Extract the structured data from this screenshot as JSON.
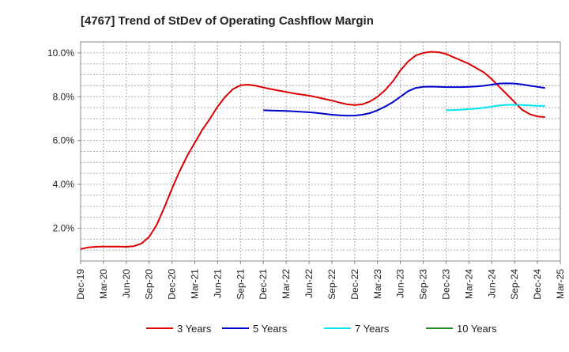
{
  "chart_data": {
    "type": "line",
    "title": "[4767]  Trend of StDev of Operating Cashflow Margin",
    "xlabel": "",
    "ylabel": "",
    "x_ticks": [
      "Dec-19",
      "Mar-20",
      "Jun-20",
      "Sep-20",
      "Dec-20",
      "Mar-21",
      "Jun-21",
      "Sep-21",
      "Dec-21",
      "Mar-22",
      "Jun-22",
      "Sep-22",
      "Dec-22",
      "Mar-23",
      "Jun-23",
      "Sep-23",
      "Dec-23",
      "Mar-24",
      "Jun-24",
      "Sep-24",
      "Dec-24",
      "Mar-25"
    ],
    "y_ticks": [
      {
        "value": 2.0,
        "label": "2.0%"
      },
      {
        "value": 4.0,
        "label": "4.0%"
      },
      {
        "value": 6.0,
        "label": "6.0%"
      },
      {
        "value": 8.0,
        "label": "8.0%"
      },
      {
        "value": 10.0,
        "label": "10.0%"
      }
    ],
    "ylim": [
      0.5,
      10.5
    ],
    "grid": true,
    "legend_position": "bottom",
    "series": [
      {
        "name": "3 Years",
        "color": "#dd0000",
        "points": [
          [
            "Dec-19",
            1.05
          ],
          [
            "Jan-20",
            1.12
          ],
          [
            "Feb-20",
            1.15
          ],
          [
            "Mar-20",
            1.16
          ],
          [
            "Apr-20",
            1.16
          ],
          [
            "May-20",
            1.16
          ],
          [
            "Jun-20",
            1.15
          ],
          [
            "Jul-20",
            1.18
          ],
          [
            "Aug-20",
            1.3
          ],
          [
            "Sep-20",
            1.6
          ],
          [
            "Oct-20",
            2.15
          ],
          [
            "Nov-20",
            2.95
          ],
          [
            "Dec-20",
            3.8
          ],
          [
            "Jan-21",
            4.6
          ],
          [
            "Feb-21",
            5.3
          ],
          [
            "Mar-21",
            5.9
          ],
          [
            "Apr-21",
            6.5
          ],
          [
            "May-21",
            7.0
          ],
          [
            "Jun-21",
            7.55
          ],
          [
            "Jul-21",
            8.0
          ],
          [
            "Aug-21",
            8.35
          ],
          [
            "Sep-21",
            8.52
          ],
          [
            "Oct-21",
            8.55
          ],
          [
            "Nov-21",
            8.5
          ],
          [
            "Dec-21",
            8.42
          ],
          [
            "Jan-22",
            8.35
          ],
          [
            "Feb-22",
            8.28
          ],
          [
            "Mar-22",
            8.22
          ],
          [
            "Apr-22",
            8.15
          ],
          [
            "May-22",
            8.1
          ],
          [
            "Jun-22",
            8.05
          ],
          [
            "Jul-22",
            7.98
          ],
          [
            "Aug-22",
            7.9
          ],
          [
            "Sep-22",
            7.82
          ],
          [
            "Oct-22",
            7.73
          ],
          [
            "Nov-22",
            7.65
          ],
          [
            "Dec-22",
            7.62
          ],
          [
            "Jan-23",
            7.65
          ],
          [
            "Feb-23",
            7.78
          ],
          [
            "Mar-23",
            8.0
          ],
          [
            "Apr-23",
            8.3
          ],
          [
            "May-23",
            8.7
          ],
          [
            "Jun-23",
            9.2
          ],
          [
            "Jul-23",
            9.6
          ],
          [
            "Aug-23",
            9.88
          ],
          [
            "Sep-23",
            10.0
          ],
          [
            "Oct-23",
            10.05
          ],
          [
            "Nov-23",
            10.03
          ],
          [
            "Dec-23",
            9.95
          ],
          [
            "Jan-24",
            9.8
          ],
          [
            "Feb-24",
            9.65
          ],
          [
            "Mar-24",
            9.5
          ],
          [
            "Apr-24",
            9.3
          ],
          [
            "May-24",
            9.1
          ],
          [
            "Jun-24",
            8.8
          ],
          [
            "Jul-24",
            8.45
          ],
          [
            "Aug-24",
            8.1
          ],
          [
            "Sep-24",
            7.75
          ],
          [
            "Oct-24",
            7.4
          ],
          [
            "Nov-24",
            7.2
          ],
          [
            "Dec-24",
            7.1
          ],
          [
            "Jan-25",
            7.07
          ]
        ]
      },
      {
        "name": "5 Years",
        "color": "#0000cc",
        "points": [
          [
            "Dec-21",
            7.38
          ],
          [
            "Jan-22",
            7.37
          ],
          [
            "Feb-22",
            7.36
          ],
          [
            "Mar-22",
            7.35
          ],
          [
            "Apr-22",
            7.33
          ],
          [
            "May-22",
            7.31
          ],
          [
            "Jun-22",
            7.29
          ],
          [
            "Jul-22",
            7.26
          ],
          [
            "Aug-22",
            7.22
          ],
          [
            "Sep-22",
            7.18
          ],
          [
            "Oct-22",
            7.15
          ],
          [
            "Nov-22",
            7.13
          ],
          [
            "Dec-22",
            7.14
          ],
          [
            "Jan-23",
            7.18
          ],
          [
            "Feb-23",
            7.25
          ],
          [
            "Mar-23",
            7.38
          ],
          [
            "Apr-23",
            7.55
          ],
          [
            "May-23",
            7.75
          ],
          [
            "Jun-23",
            8.0
          ],
          [
            "Jul-23",
            8.25
          ],
          [
            "Aug-23",
            8.4
          ],
          [
            "Sep-23",
            8.45
          ],
          [
            "Oct-23",
            8.46
          ],
          [
            "Nov-23",
            8.45
          ],
          [
            "Dec-23",
            8.44
          ],
          [
            "Jan-24",
            8.44
          ],
          [
            "Feb-24",
            8.44
          ],
          [
            "Mar-24",
            8.45
          ],
          [
            "Apr-24",
            8.47
          ],
          [
            "May-24",
            8.5
          ],
          [
            "Jun-24",
            8.55
          ],
          [
            "Jul-24",
            8.6
          ],
          [
            "Aug-24",
            8.61
          ],
          [
            "Sep-24",
            8.6
          ],
          [
            "Oct-24",
            8.56
          ],
          [
            "Nov-24",
            8.5
          ],
          [
            "Dec-24",
            8.45
          ],
          [
            "Jan-25",
            8.4
          ]
        ]
      },
      {
        "name": "7 Years",
        "color": "#00e5ee",
        "points": [
          [
            "Dec-23",
            7.38
          ],
          [
            "Jan-24",
            7.39
          ],
          [
            "Feb-24",
            7.41
          ],
          [
            "Mar-24",
            7.43
          ],
          [
            "Apr-24",
            7.46
          ],
          [
            "May-24",
            7.5
          ],
          [
            "Jun-24",
            7.55
          ],
          [
            "Jul-24",
            7.6
          ],
          [
            "Aug-24",
            7.63
          ],
          [
            "Sep-24",
            7.63
          ],
          [
            "Oct-24",
            7.62
          ],
          [
            "Nov-24",
            7.6
          ],
          [
            "Dec-24",
            7.58
          ],
          [
            "Jan-25",
            7.58
          ]
        ]
      },
      {
        "name": "10 Years",
        "color": "#228b22",
        "points": []
      }
    ]
  }
}
